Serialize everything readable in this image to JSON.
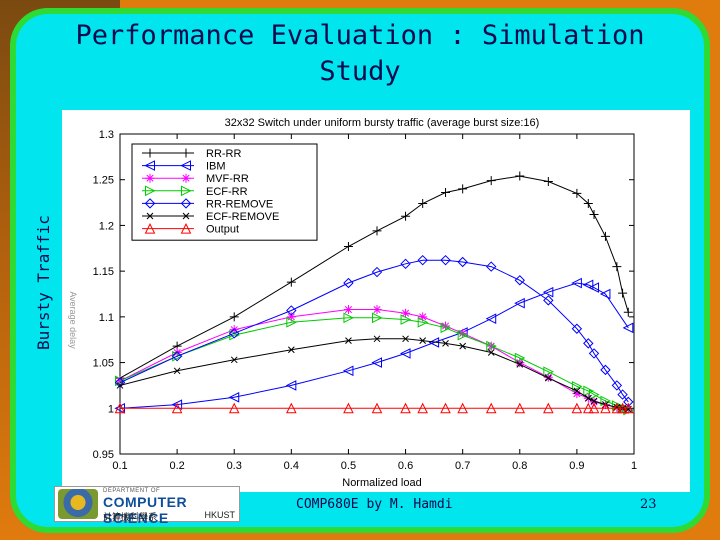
{
  "slide": {
    "title": "Performance Evaluation : Simulation Study",
    "side_label": "Bursty Traffic",
    "footer_text": "COMP680E by M. Hamdi",
    "page_number": "23",
    "logo": {
      "top_text": "DEPARTMENT OF",
      "main_text": "COMPUTER SCIENCE",
      "chinese_text": "計算機科學系",
      "university": "HKUST"
    }
  },
  "colors": {
    "background": "#e07b0e",
    "slide": "#00e5ee",
    "border": "#2edb34",
    "text": "#0a0a50"
  },
  "chart_data": {
    "type": "line",
    "title": "32x32 Switch under uniform bursty traffic (average burst size:16)",
    "xlabel": "Normalized load",
    "ylabel": "Average delay",
    "xlim": [
      0.1,
      1.0
    ],
    "ylim": [
      0.95,
      1.3
    ],
    "x_ticks": [
      0.1,
      0.2,
      0.3,
      0.4,
      0.5,
      0.6,
      0.7,
      0.8,
      0.9,
      1.0
    ],
    "x_tick_labels": [
      "0.1",
      "0.2",
      "0.3",
      "0.4",
      "0.5",
      "0.6",
      "0.7",
      "0.8",
      "0.9",
      "1"
    ],
    "y_ticks": [
      0.95,
      1.0,
      1.05,
      1.1,
      1.15,
      1.2,
      1.25,
      1.3
    ],
    "y_tick_labels": [
      "0.95",
      "1",
      "1.05",
      "1.1",
      "1.15",
      "1.2",
      "1.25",
      "1.3"
    ],
    "legend_position": "top-left",
    "series": [
      {
        "name": "RR-RR",
        "color": "#000000",
        "marker": "plus",
        "x": [
          0.1,
          0.2,
          0.3,
          0.4,
          0.5,
          0.55,
          0.6,
          0.63,
          0.67,
          0.7,
          0.75,
          0.8,
          0.85,
          0.9,
          0.92,
          0.93,
          0.95,
          0.97,
          0.98,
          0.99
        ],
        "y": [
          1.033,
          1.068,
          1.1,
          1.138,
          1.177,
          1.194,
          1.21,
          1.224,
          1.236,
          1.24,
          1.249,
          1.254,
          1.248,
          1.235,
          1.224,
          1.212,
          1.188,
          1.155,
          1.126,
          1.105
        ]
      },
      {
        "name": "IBM",
        "color": "#0000ff",
        "marker": "triangle-left",
        "x": [
          0.1,
          0.2,
          0.3,
          0.4,
          0.5,
          0.55,
          0.6,
          0.65,
          0.7,
          0.75,
          0.8,
          0.85,
          0.9,
          0.92,
          0.93,
          0.95,
          0.99
        ],
        "y": [
          1.0,
          1.004,
          1.012,
          1.025,
          1.041,
          1.05,
          1.06,
          1.072,
          1.083,
          1.098,
          1.115,
          1.127,
          1.137,
          1.135,
          1.132,
          1.125,
          1.088
        ]
      },
      {
        "name": "MVF-RR",
        "color": "#ff00ff",
        "marker": "asterisk",
        "x": [
          0.1,
          0.2,
          0.3,
          0.4,
          0.5,
          0.55,
          0.6,
          0.63,
          0.67,
          0.7,
          0.75,
          0.8,
          0.85,
          0.9,
          0.92,
          0.93,
          0.95,
          0.97,
          0.98,
          0.99
        ],
        "y": [
          1.03,
          1.061,
          1.086,
          1.1,
          1.108,
          1.108,
          1.104,
          1.1,
          1.09,
          1.082,
          1.068,
          1.05,
          1.034,
          1.016,
          1.011,
          1.007,
          1.004,
          1.001,
          1.0,
          0.999
        ]
      },
      {
        "name": "ECF-RR",
        "color": "#00cc00",
        "marker": "triangle-right",
        "x": [
          0.1,
          0.2,
          0.3,
          0.4,
          0.5,
          0.55,
          0.6,
          0.63,
          0.67,
          0.7,
          0.75,
          0.8,
          0.85,
          0.9,
          0.92,
          0.93,
          0.95,
          0.97,
          0.98,
          0.99
        ],
        "y": [
          1.03,
          1.057,
          1.08,
          1.094,
          1.099,
          1.099,
          1.097,
          1.094,
          1.088,
          1.08,
          1.068,
          1.055,
          1.04,
          1.024,
          1.019,
          1.015,
          1.008,
          1.003,
          1.0,
          0.998
        ]
      },
      {
        "name": "RR-REMOVE",
        "color": "#0000ff",
        "marker": "diamond",
        "x": [
          0.1,
          0.2,
          0.3,
          0.4,
          0.5,
          0.55,
          0.6,
          0.63,
          0.67,
          0.7,
          0.75,
          0.8,
          0.85,
          0.9,
          0.92,
          0.93,
          0.95,
          0.97,
          0.98,
          0.99
        ],
        "y": [
          1.028,
          1.057,
          1.082,
          1.107,
          1.137,
          1.149,
          1.158,
          1.162,
          1.162,
          1.16,
          1.155,
          1.14,
          1.118,
          1.087,
          1.071,
          1.06,
          1.042,
          1.025,
          1.015,
          1.007
        ]
      },
      {
        "name": "ECF-REMOVE",
        "color": "#000000",
        "marker": "x",
        "x": [
          0.1,
          0.2,
          0.3,
          0.4,
          0.5,
          0.55,
          0.6,
          0.63,
          0.67,
          0.7,
          0.75,
          0.8,
          0.85,
          0.9,
          0.92,
          0.93,
          0.95,
          0.97,
          0.98,
          0.99
        ],
        "y": [
          1.025,
          1.041,
          1.053,
          1.064,
          1.074,
          1.076,
          1.076,
          1.074,
          1.071,
          1.068,
          1.061,
          1.048,
          1.033,
          1.019,
          1.011,
          1.008,
          1.004,
          1.001,
          1.0,
          0.999
        ]
      },
      {
        "name": "Output",
        "color": "#ff0000",
        "marker": "triangle-up",
        "x": [
          0.1,
          0.2,
          0.3,
          0.4,
          0.5,
          0.55,
          0.6,
          0.63,
          0.67,
          0.7,
          0.75,
          0.8,
          0.85,
          0.9,
          0.92,
          0.93,
          0.95,
          0.97,
          0.98,
          0.99
        ],
        "y": [
          1.0,
          1.0,
          1.0,
          1.0,
          1.0,
          1.0,
          1.0,
          1.0,
          1.0,
          1.0,
          1.0,
          1.0,
          1.0,
          1.0,
          1.0,
          1.0,
          1.0,
          1.0,
          1.0,
          1.0
        ]
      }
    ]
  }
}
